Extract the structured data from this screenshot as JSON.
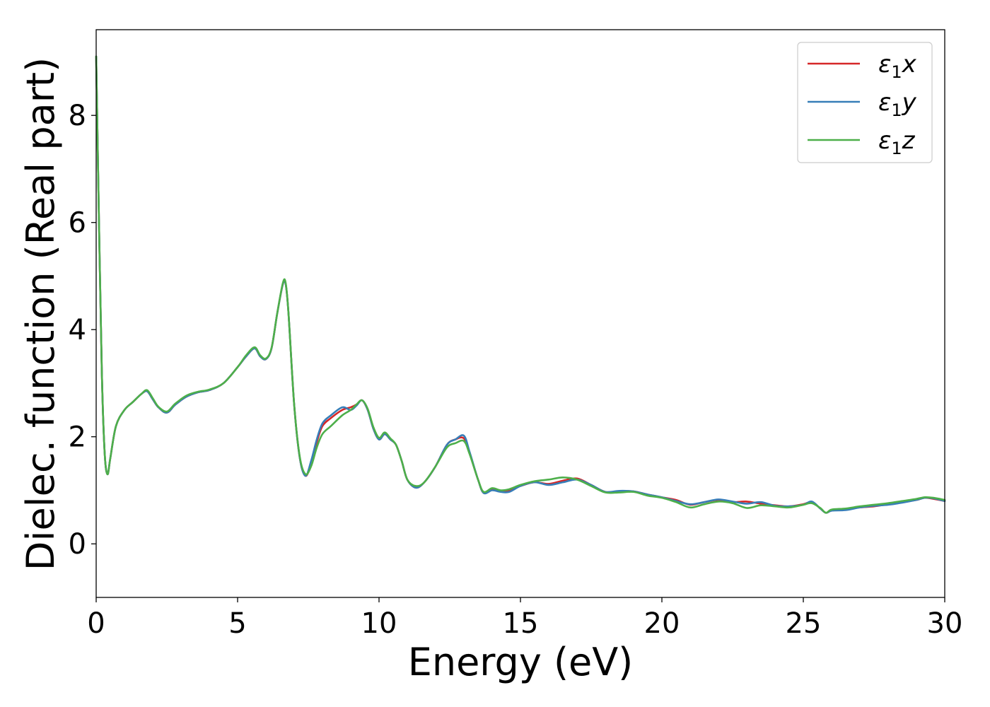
{
  "chart_data": {
    "type": "line",
    "xlabel": "Energy (eV)",
    "ylabel": "Dielec. function (Real part)",
    "xlim": [
      0,
      30
    ],
    "ylim": [
      -1,
      9.6
    ],
    "xticks": [
      0,
      5,
      10,
      15,
      20,
      25,
      30
    ],
    "yticks": [
      0,
      2,
      4,
      6,
      8
    ],
    "grid": false,
    "legend_position": "top-right",
    "x": [
      0,
      0.1,
      0.2,
      0.3,
      0.4,
      0.5,
      0.7,
      1.0,
      1.3,
      1.6,
      1.8,
      2.0,
      2.2,
      2.5,
      2.8,
      3.2,
      3.6,
      4.0,
      4.5,
      5.0,
      5.3,
      5.6,
      5.8,
      6.0,
      6.2,
      6.4,
      6.6,
      6.7,
      6.8,
      7.0,
      7.2,
      7.4,
      7.6,
      7.8,
      8.0,
      8.3,
      8.7,
      9.0,
      9.2,
      9.4,
      9.6,
      9.8,
      10.0,
      10.2,
      10.4,
      10.6,
      10.8,
      11.0,
      11.3,
      11.6,
      12.0,
      12.4,
      12.7,
      13.0,
      13.2,
      13.5,
      13.7,
      14.0,
      14.3,
      14.6,
      15.0,
      15.5,
      16.0,
      16.5,
      17.0,
      17.5,
      18.0,
      18.5,
      19.0,
      19.5,
      20.0,
      20.5,
      21.0,
      21.5,
      22.0,
      22.5,
      23.0,
      23.5,
      24.0,
      24.5,
      25.0,
      25.3,
      25.6,
      25.8,
      26.0,
      26.5,
      27.0,
      27.5,
      28.0,
      28.5,
      29.0,
      29.3,
      29.6,
      30.0
    ],
    "series": [
      {
        "name": "ε1x",
        "color": "#d62728",
        "values": [
          9.1,
          6.0,
          3.2,
          1.7,
          1.3,
          1.6,
          2.2,
          2.5,
          2.65,
          2.8,
          2.85,
          2.7,
          2.55,
          2.45,
          2.6,
          2.75,
          2.83,
          2.87,
          3.0,
          3.3,
          3.5,
          3.65,
          3.5,
          3.45,
          3.65,
          4.3,
          4.85,
          4.85,
          4.3,
          2.6,
          1.6,
          1.27,
          1.5,
          1.9,
          2.2,
          2.35,
          2.5,
          2.55,
          2.6,
          2.68,
          2.5,
          2.15,
          1.95,
          2.05,
          1.95,
          1.85,
          1.55,
          1.2,
          1.05,
          1.15,
          1.45,
          1.85,
          1.95,
          1.97,
          1.7,
          1.2,
          0.95,
          1.02,
          0.98,
          1.0,
          1.08,
          1.15,
          1.12,
          1.18,
          1.22,
          1.1,
          0.97,
          0.98,
          0.98,
          0.92,
          0.87,
          0.82,
          0.73,
          0.78,
          0.82,
          0.78,
          0.79,
          0.75,
          0.72,
          0.7,
          0.74,
          0.78,
          0.66,
          0.58,
          0.62,
          0.65,
          0.68,
          0.7,
          0.74,
          0.78,
          0.82,
          0.86,
          0.84,
          0.8
        ]
      },
      {
        "name": "ε1y",
        "color": "#377eb8",
        "values": [
          9.1,
          6.0,
          3.2,
          1.7,
          1.3,
          1.6,
          2.2,
          2.5,
          2.65,
          2.8,
          2.85,
          2.7,
          2.55,
          2.45,
          2.6,
          2.75,
          2.83,
          2.87,
          3.0,
          3.3,
          3.5,
          3.65,
          3.5,
          3.45,
          3.65,
          4.3,
          4.85,
          4.85,
          4.3,
          2.6,
          1.6,
          1.27,
          1.55,
          1.95,
          2.25,
          2.4,
          2.55,
          2.5,
          2.58,
          2.68,
          2.5,
          2.15,
          1.95,
          2.05,
          1.95,
          1.85,
          1.55,
          1.2,
          1.05,
          1.15,
          1.45,
          1.85,
          1.95,
          2.02,
          1.72,
          1.2,
          0.95,
          1.0,
          0.97,
          0.97,
          1.08,
          1.15,
          1.1,
          1.15,
          1.2,
          1.1,
          0.97,
          0.99,
          0.98,
          0.92,
          0.87,
          0.8,
          0.74,
          0.78,
          0.83,
          0.79,
          0.75,
          0.78,
          0.71,
          0.7,
          0.73,
          0.79,
          0.66,
          0.58,
          0.62,
          0.63,
          0.68,
          0.71,
          0.73,
          0.77,
          0.82,
          0.86,
          0.85,
          0.8
        ]
      },
      {
        "name": "ε1z",
        "color": "#4daf4a",
        "values": [
          9.1,
          6.0,
          3.2,
          1.7,
          1.3,
          1.6,
          2.2,
          2.5,
          2.65,
          2.8,
          2.87,
          2.72,
          2.56,
          2.47,
          2.62,
          2.77,
          2.84,
          2.88,
          3.0,
          3.3,
          3.52,
          3.67,
          3.52,
          3.46,
          3.66,
          4.3,
          4.87,
          4.87,
          4.3,
          2.6,
          1.62,
          1.3,
          1.45,
          1.8,
          2.05,
          2.2,
          2.4,
          2.5,
          2.6,
          2.68,
          2.52,
          2.18,
          1.98,
          2.08,
          1.97,
          1.85,
          1.55,
          1.2,
          1.08,
          1.15,
          1.45,
          1.8,
          1.88,
          1.92,
          1.68,
          1.2,
          0.97,
          1.04,
          1.0,
          1.02,
          1.1,
          1.17,
          1.2,
          1.24,
          1.2,
          1.08,
          0.96,
          0.96,
          0.97,
          0.9,
          0.86,
          0.78,
          0.68,
          0.74,
          0.79,
          0.76,
          0.67,
          0.72,
          0.7,
          0.68,
          0.73,
          0.76,
          0.67,
          0.58,
          0.64,
          0.66,
          0.7,
          0.73,
          0.76,
          0.8,
          0.84,
          0.87,
          0.86,
          0.82
        ]
      }
    ]
  }
}
